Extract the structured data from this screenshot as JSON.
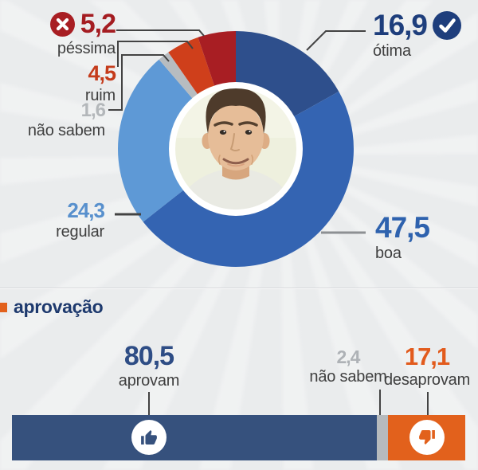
{
  "chart_data": [
    {
      "type": "pie",
      "variant": "donut",
      "unit": "%",
      "order": "clockwise-from-top",
      "center_content": "portrait-photo-of-man",
      "slices": [
        {
          "label": "ótima",
          "value": 16.9,
          "display": "16,9",
          "color": "#2e4f8c",
          "text_color": "#1e3e7c",
          "icon": "check-circle"
        },
        {
          "label": "boa",
          "value": 47.5,
          "display": "47,5",
          "color": "#3464b2",
          "text_color": "#2e62ae"
        },
        {
          "label": "regular",
          "value": 24.3,
          "display": "24,3",
          "color": "#5e99d6",
          "text_color": "#5890cd"
        },
        {
          "label": "não sabem",
          "value": 1.6,
          "display": "1,6",
          "color": "#b7bcc0",
          "text_color": "#b3b7ba"
        },
        {
          "label": "ruim",
          "value": 4.5,
          "display": "4,5",
          "color": "#cf3f1b",
          "text_color": "#c53c1c"
        },
        {
          "label": "péssima",
          "value": 5.2,
          "display": "5,2",
          "color": "#a81e23",
          "text_color": "#a41c21",
          "icon": "x-circle"
        }
      ]
    },
    {
      "type": "bar",
      "variant": "horizontal-stacked",
      "title": "aprovação",
      "title_color": "#1e3a6e",
      "bullet_color": "#e2611c",
      "unit": "%",
      "segments": [
        {
          "label": "aprovam",
          "value": 80.5,
          "display": "80,5",
          "color": "#36517d",
          "text_color": "#2e4d85",
          "icon": "thumbs-up"
        },
        {
          "label": "não sabem",
          "value": 2.4,
          "display": "2,4",
          "color": "#b6babd",
          "text_color": "#aeb2b6"
        },
        {
          "label": "desaprovam",
          "value": 17.1,
          "display": "17,1",
          "color": "#e2611c",
          "text_color": "#e25b1d",
          "icon": "thumbs-down"
        }
      ]
    }
  ]
}
